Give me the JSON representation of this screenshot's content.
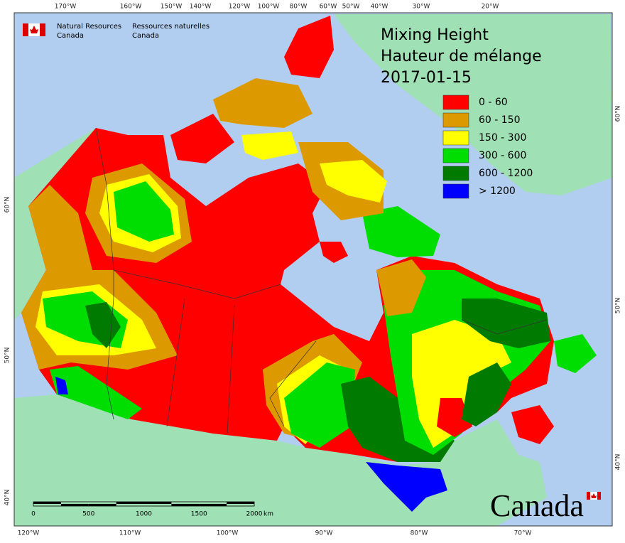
{
  "header": {
    "agency_en": [
      "Natural Resources",
      "Canada"
    ],
    "agency_fr": [
      "Ressources naturelles",
      "Canada"
    ]
  },
  "title": [
    "Mixing Height",
    "Hauteur de mélange",
    "2017-01-15"
  ],
  "legend": {
    "items": [
      {
        "label": "0 - 60",
        "color": "#ff0000"
      },
      {
        "label": "60 - 150",
        "color": "#dd9a00"
      },
      {
        "label": "150 - 300",
        "color": "#ffff00"
      },
      {
        "label": "300 - 600",
        "color": "#00dd00"
      },
      {
        "label": "600 - 1200",
        "color": "#007a00"
      },
      {
        "label": "> 1200",
        "color": "#0000ff"
      }
    ]
  },
  "graticule": {
    "top": [
      "170°W",
      "160°W",
      "150°W",
      "140°W",
      "120°W",
      "100°W",
      "80°W",
      "60°W",
      "50°W",
      "40°W",
      "30°W",
      "20°W"
    ],
    "bottom": [
      "120°W",
      "110°W",
      "100°W",
      "90°W",
      "80°W",
      "70°W"
    ],
    "left": [
      "60°N",
      "50°N",
      "40°N"
    ],
    "right": [
      "60°N",
      "50°N",
      "40°N"
    ]
  },
  "scale_bar": {
    "labels": [
      "0",
      "500",
      "1000",
      "1500",
      "2000"
    ],
    "unit": "km"
  },
  "wordmark": "Canada"
}
